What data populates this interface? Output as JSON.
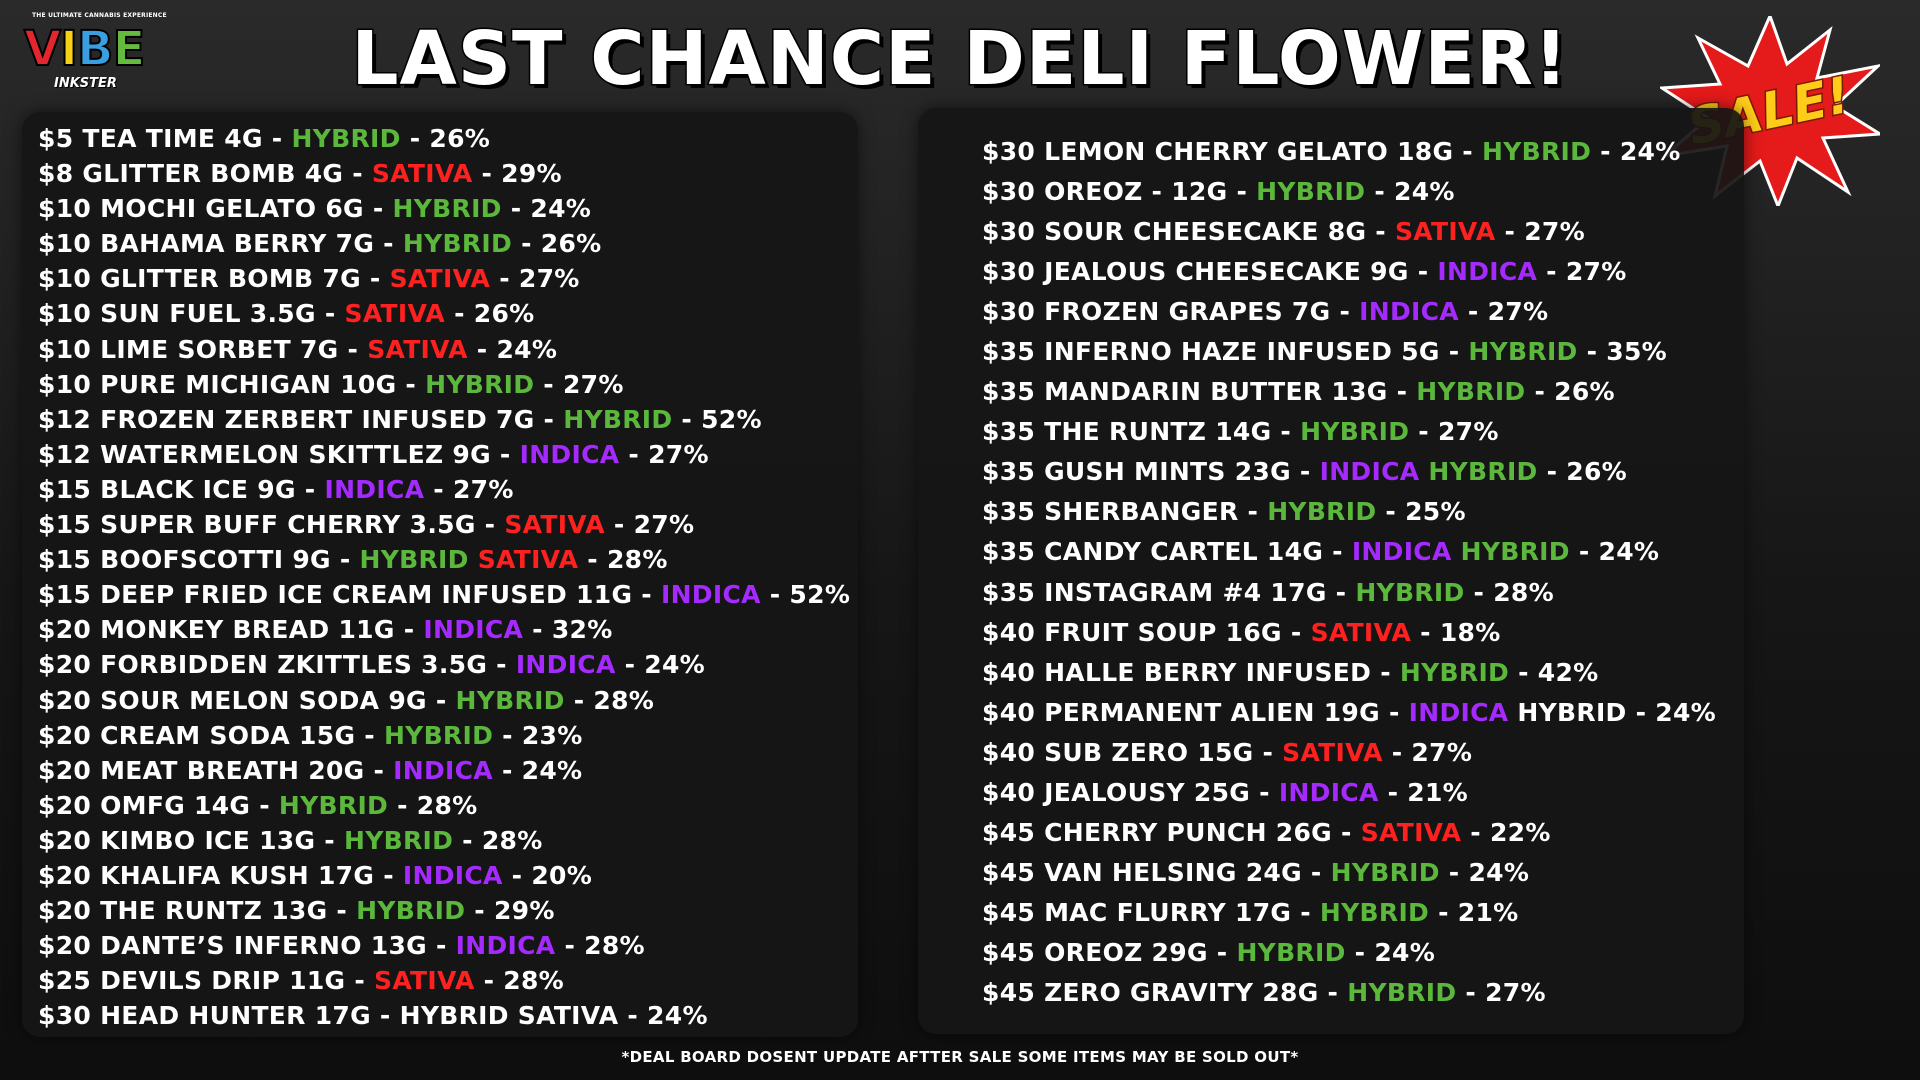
{
  "brand": {
    "tagline": "THE ULTIMATE CANNABIS EXPERIENCE",
    "letters": [
      "V",
      "I",
      "B",
      "E"
    ],
    "location": "INKSTER",
    "letter_colors": [
      "#e3262e",
      "#f7d117",
      "#3a9fe0",
      "#66bb3f"
    ]
  },
  "title": "LAST CHANCE DELI FLOWER!",
  "badge": {
    "text": "SALE!",
    "burst_color": "#e51a1a",
    "text_color": "#ffcc1a"
  },
  "colors": {
    "SATIVA": "#ff2020",
    "HYBRID": "#5cb83c",
    "INDICA": "#a52aff"
  },
  "left_column": [
    {
      "main": "$5 TEA TIME 4G - ",
      "strains": [
        "HYBRID"
      ],
      "tail": " - 26%"
    },
    {
      "main": "$8 GLITTER BOMB 4G - ",
      "strains": [
        "SATIVA"
      ],
      "tail": " - 29%"
    },
    {
      "main": "$10 MOCHI GELATO 6G - ",
      "strains": [
        "HYBRID"
      ],
      "tail": " - 24%"
    },
    {
      "main": "$10 BAHAMA BERRY 7G - ",
      "strains": [
        "HYBRID"
      ],
      "tail": " - 26%"
    },
    {
      "main": "$10 GLITTER BOMB 7G - ",
      "strains": [
        "SATIVA"
      ],
      "tail": " - 27%"
    },
    {
      "main": "$10 SUN FUEL 3.5G - ",
      "strains": [
        "SATIVA"
      ],
      "tail": " - 26%"
    },
    {
      "main": "$10 LIME SORBET 7G - ",
      "strains": [
        "SATIVA"
      ],
      "tail": " - 24%"
    },
    {
      "main": "$10 PURE MICHIGAN 10G - ",
      "strains": [
        "HYBRID"
      ],
      "tail": " - 27%"
    },
    {
      "main": "$12 FROZEN ZERBERT INFUSED 7G - ",
      "strains": [
        "HYBRID"
      ],
      "tail": " - 52%"
    },
    {
      "main": "$12 WATERMELON SKITTLEZ 9G - ",
      "strains": [
        "INDICA"
      ],
      "tail": " - 27%"
    },
    {
      "main": "$15 BLACK ICE 9G - ",
      "strains": [
        "INDICA"
      ],
      "tail": " - 27%"
    },
    {
      "main": "$15 SUPER BUFF CHERRY 3.5G - ",
      "strains": [
        "SATIVA"
      ],
      "tail": " - 27%"
    },
    {
      "main": "$15 BOOFSCOTTI 9G - ",
      "strains": [
        "HYBRID",
        "SATIVA"
      ],
      "tail": " - 28%"
    },
    {
      "main": "$15 DEEP FRIED ICE CREAM INFUSED 11G - ",
      "strains": [
        "INDICA"
      ],
      "tail": " - 52%"
    },
    {
      "main": "$20 MONKEY BREAD 11G - ",
      "strains": [
        "INDICA"
      ],
      "tail": " - 32%"
    },
    {
      "main": "$20 FORBIDDEN ZKITTLES 3.5G - ",
      "strains": [
        "INDICA"
      ],
      "tail": " - 24%"
    },
    {
      "main": "$20 SOUR MELON SODA 9G - ",
      "strains": [
        "HYBRID"
      ],
      "tail": " - 28%"
    },
    {
      "main": "$20 CREAM SODA 15G - ",
      "strains": [
        "HYBRID"
      ],
      "tail": " - 23%"
    },
    {
      "main": "$20 MEAT BREATH 20G - ",
      "strains": [
        "INDICA"
      ],
      "tail": " - 24%"
    },
    {
      "main": "$20 OMFG 14G - ",
      "strains": [
        "HYBRID"
      ],
      "tail": " - 28%"
    },
    {
      "main": "$20 KIMBO ICE 13G - ",
      "strains": [
        "HYBRID"
      ],
      "tail": " - 28%"
    },
    {
      "main": "$20 KHALIFA KUSH 17G - ",
      "strains": [
        "INDICA"
      ],
      "tail": " - 20%"
    },
    {
      "main": "$20 THE RUNTZ 13G - ",
      "strains": [
        "HYBRID"
      ],
      "tail": " - 29%"
    },
    {
      "main": "$20 DANTE’S INFERNO 13G - ",
      "strains": [
        "INDICA"
      ],
      "tail": " - 28%"
    },
    {
      "main": "$25 DEVILS DRIP 11G - ",
      "strains": [
        "SATIVA"
      ],
      "tail": " - 28%"
    },
    {
      "main": "$30 HEAD HUNTER 17G - HYBRID SATIVA - 24%",
      "strains": [],
      "tail": ""
    }
  ],
  "right_column": [
    {
      "main": "$30 LEMON CHERRY GELATO 18G - ",
      "strains": [
        "HYBRID"
      ],
      "tail": " - 24%"
    },
    {
      "main": "$30 OREOZ - 12G - ",
      "strains": [
        "HYBRID"
      ],
      "tail": " - 24%"
    },
    {
      "main": "$30 SOUR CHEESECAKE 8G - ",
      "strains": [
        "SATIVA"
      ],
      "tail": " - 27%"
    },
    {
      "main": "$30 JEALOUS CHEESECAKE 9G - ",
      "strains": [
        "INDICA"
      ],
      "tail": " - 27%"
    },
    {
      "main": "$30 FROZEN GRAPES 7G - ",
      "strains": [
        "INDICA"
      ],
      "tail": " - 27%"
    },
    {
      "main": "$35 INFERNO HAZE INFUSED 5G - ",
      "strains": [
        "HYBRID"
      ],
      "tail": " - 35%"
    },
    {
      "main": "$35 MANDARIN BUTTER 13G - ",
      "strains": [
        "HYBRID"
      ],
      "tail": " - 26%"
    },
    {
      "main": "$35 THE RUNTZ 14G - ",
      "strains": [
        "HYBRID"
      ],
      "tail": " - 27%"
    },
    {
      "main": "$35 GUSH MINTS 23G - ",
      "strains": [
        "INDICA",
        "HYBRID"
      ],
      "tail": " - 26%"
    },
    {
      "main": "$35 SHERBANGER - ",
      "strains": [
        "HYBRID"
      ],
      "tail": " - 25%"
    },
    {
      "main": "$35 CANDY CARTEL 14G - ",
      "strains": [
        "INDICA",
        "HYBRID"
      ],
      "tail": " - 24%"
    },
    {
      "main": "$35 INSTAGRAM #4 17G - ",
      "strains": [
        "HYBRID"
      ],
      "tail": " - 28%"
    },
    {
      "main": "$40 FRUIT SOUP 16G - ",
      "strains": [
        "SATIVA"
      ],
      "tail": " - 18%"
    },
    {
      "main": "$40 HALLE BERRY INFUSED - ",
      "strains": [
        "HYBRID"
      ],
      "tail": " - 42%"
    },
    {
      "main": "$40 PERMANENT ALIEN 19G - ",
      "strains": [
        "INDICA"
      ],
      "tail": " HYBRID - 24%"
    },
    {
      "main": "$40 SUB ZERO 15G - ",
      "strains": [
        "SATIVA"
      ],
      "tail": " - 27%"
    },
    {
      "main": "$40 JEALOUSY 25G - ",
      "strains": [
        "INDICA"
      ],
      "tail": " - 21%"
    },
    {
      "main": "$45 CHERRY PUNCH 26G - ",
      "strains": [
        "SATIVA"
      ],
      "tail": " - 22%"
    },
    {
      "main": "$45 VAN HELSING 24G - ",
      "strains": [
        "HYBRID"
      ],
      "tail": " - 24%"
    },
    {
      "main": "$45 MAC FLURRY 17G - ",
      "strains": [
        "HYBRID"
      ],
      "tail": " - 21%"
    },
    {
      "main": "$45 OREOZ 29G - ",
      "strains": [
        "HYBRID"
      ],
      "tail": " - 24%"
    },
    {
      "main": "$45 ZERO GRAVITY 28G - ",
      "strains": [
        "HYBRID"
      ],
      "tail": " - 27%"
    }
  ],
  "footnote": "*DEAL BOARD DOSENT UPDATE AFTTER SALE SOME ITEMS MAY BE SOLD OUT*"
}
